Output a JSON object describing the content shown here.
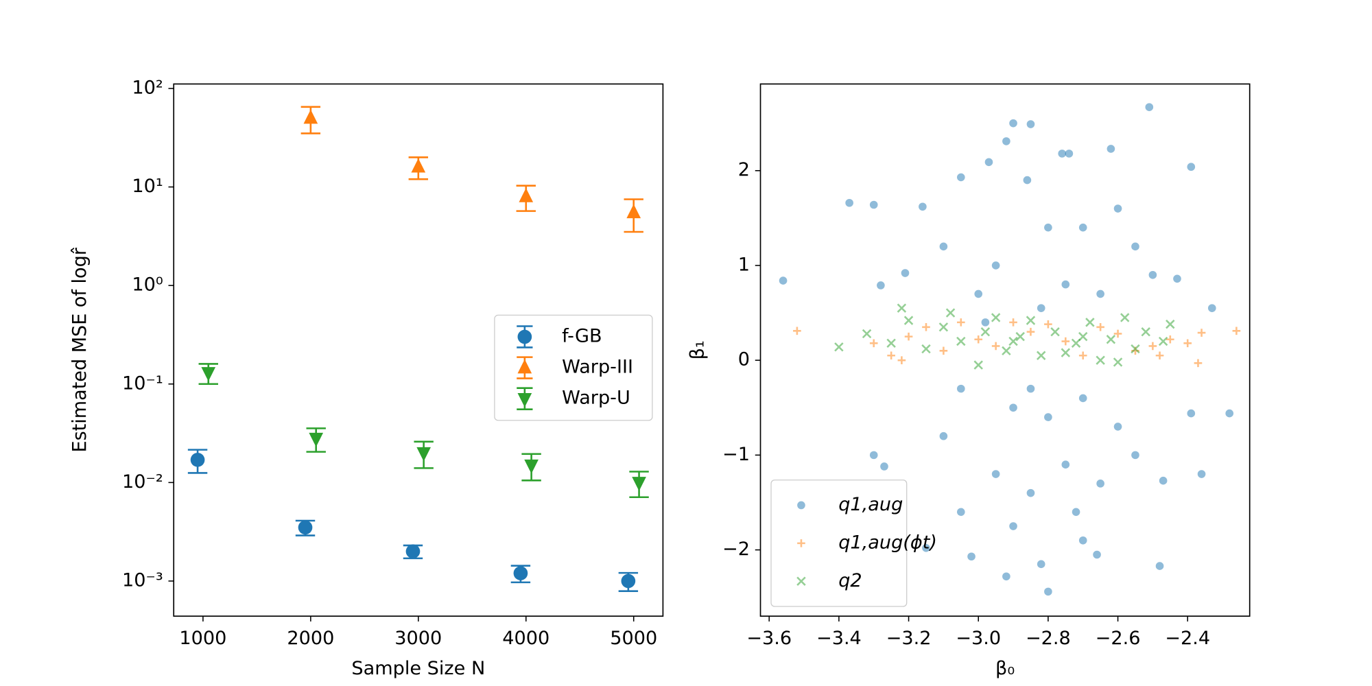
{
  "chart_data": [
    {
      "type": "errorbar",
      "xlabel": "Sample Size N",
      "ylabel": "Estimated MSE of logr̂",
      "yscale": "log",
      "xlim": [
        728,
        5272
      ],
      "xticks": [
        1000,
        2000,
        3000,
        4000,
        5000
      ],
      "ylim": [
        0.00044,
        111
      ],
      "yticks": [
        {
          "value": 0.001,
          "label": "10⁻³"
        },
        {
          "value": 0.01,
          "label": "10⁻²"
        },
        {
          "value": 0.1,
          "label": "10⁻¹"
        },
        {
          "value": 1,
          "label": "10⁰"
        },
        {
          "value": 10,
          "label": "10¹"
        },
        {
          "value": 100,
          "label": "10²"
        }
      ],
      "legend": "center right",
      "series": [
        {
          "name": "f-GB",
          "color": "#1f77b4",
          "marker": "o",
          "x": [
            950,
            1950,
            2950,
            3950,
            4950
          ],
          "values": [
            0.017,
            0.0035,
            0.002,
            0.0012,
            0.001
          ],
          "errors": [
            0.0045,
            0.0006,
            0.0003,
            0.00023,
            0.00021
          ]
        },
        {
          "name": "Warp-III",
          "color": "#ff7f0e",
          "marker": "^",
          "x": [
            2000,
            3000,
            4000,
            5000
          ],
          "values": [
            50,
            16,
            8,
            5.5
          ],
          "errors": [
            15,
            4,
            2.3,
            2
          ]
        },
        {
          "name": "Warp-U",
          "color": "#2ca02c",
          "marker": "v",
          "x": [
            1050,
            2050,
            3050,
            4050,
            5050
          ],
          "values": [
            0.13,
            0.028,
            0.02,
            0.015,
            0.01
          ],
          "errors": [
            0.03,
            0.0075,
            0.006,
            0.0045,
            0.0029
          ]
        }
      ]
    },
    {
      "type": "scatter",
      "xlabel": "β₀",
      "ylabel": "β₁",
      "xlim": [
        -3.625,
        -2.222
      ],
      "xticks": [
        {
          "value": -3.6,
          "label": "−3.6"
        },
        {
          "value": -3.4,
          "label": "−3.4"
        },
        {
          "value": -3.2,
          "label": "−3.2"
        },
        {
          "value": -3.0,
          "label": "−3.0"
        },
        {
          "value": -2.8,
          "label": "−2.8"
        },
        {
          "value": -2.6,
          "label": "−2.6"
        },
        {
          "value": -2.4,
          "label": "−2.4"
        }
      ],
      "ylim": [
        -2.699,
        2.914
      ],
      "yticks": [
        {
          "value": -2,
          "label": "−2"
        },
        {
          "value": -1,
          "label": "−1"
        },
        0,
        1,
        2
      ],
      "legend": "lower left",
      "alpha": 0.5,
      "series": [
        {
          "name": "q1,aug",
          "color": "#1f77b4",
          "marker": "o",
          "x": [
            -3.56,
            -3.37,
            -3.3,
            -2.9,
            -2.85,
            -2.51,
            -2.92,
            -2.62,
            -2.39,
            -2.76,
            -2.74,
            -2.97,
            -3.05,
            -3.16,
            -2.33,
            -2.43,
            -2.39,
            -2.28,
            -2.36,
            -2.47,
            -2.48,
            -2.8,
            -2.92,
            -3.02,
            -3.15,
            -3.3,
            -3.27,
            -2.82,
            -2.7,
            -2.66,
            -3.21,
            -3.28,
            -3.1,
            -2.86,
            -2.8,
            -2.7,
            -2.6,
            -2.55,
            -2.5,
            -2.95,
            -3.0,
            -2.75,
            -2.65,
            -3.05,
            -2.9,
            -2.8,
            -2.7,
            -2.6,
            -3.1,
            -2.95,
            -2.85,
            -2.75,
            -2.65,
            -2.55,
            -3.05,
            -2.9,
            -2.72,
            -2.85,
            -2.98,
            -2.82
          ],
          "values": [
            0.84,
            1.66,
            1.64,
            2.5,
            2.49,
            2.67,
            2.31,
            2.23,
            2.04,
            2.18,
            2.18,
            2.09,
            1.93,
            1.62,
            0.55,
            0.86,
            -0.56,
            -0.56,
            -1.2,
            -1.27,
            -2.17,
            -2.44,
            -2.28,
            -2.07,
            -1.98,
            -1.0,
            -1.12,
            -2.15,
            -1.9,
            -2.05,
            0.92,
            0.79,
            1.2,
            1.9,
            1.4,
            1.4,
            1.6,
            1.2,
            0.9,
            1.0,
            0.7,
            0.8,
            0.7,
            -0.3,
            -0.5,
            -0.6,
            -0.4,
            -0.7,
            -0.8,
            -1.2,
            -1.4,
            -1.1,
            -1.3,
            -1.0,
            -1.6,
            -1.75,
            -1.6,
            -0.3,
            0.4,
            0.55
          ]
        },
        {
          "name": "q1,aug(ϕt)",
          "color": "#ff7f0e",
          "marker": "+",
          "x": [
            -3.52,
            -2.26,
            -2.36,
            -2.37,
            -3.3,
            -3.25,
            -3.15,
            -3.05,
            -2.95,
            -2.85,
            -2.75,
            -2.65,
            -2.55,
            -2.45,
            -2.4,
            -3.2,
            -3.1,
            -2.9,
            -2.7,
            -2.6,
            -2.5,
            -3.0,
            -2.8,
            -3.22,
            -2.48
          ],
          "values": [
            0.31,
            0.31,
            0.29,
            -0.03,
            0.18,
            0.05,
            0.35,
            0.4,
            0.15,
            0.3,
            0.2,
            0.35,
            0.1,
            0.22,
            0.18,
            0.25,
            0.1,
            0.4,
            0.05,
            0.28,
            0.15,
            0.22,
            0.38,
            0.0,
            0.05
          ]
        },
        {
          "name": "q2",
          "color": "#2ca02c",
          "marker": "x",
          "x": [
            -3.4,
            -3.32,
            -3.22,
            -3.2,
            -3.1,
            -3.05,
            -2.98,
            -2.92,
            -2.88,
            -2.82,
            -2.78,
            -2.72,
            -2.68,
            -2.62,
            -2.58,
            -2.52,
            -2.45,
            -2.47,
            -3.15,
            -3.0,
            -2.85,
            -2.75,
            -2.65,
            -2.55,
            -3.08,
            -2.95,
            -2.7,
            -2.6,
            -3.25,
            -2.9
          ],
          "values": [
            0.14,
            0.28,
            0.55,
            0.42,
            0.35,
            0.2,
            0.3,
            0.1,
            0.25,
            0.05,
            0.3,
            0.18,
            0.4,
            0.22,
            0.45,
            0.3,
            0.38,
            0.2,
            0.12,
            -0.05,
            0.42,
            0.08,
            0.0,
            0.12,
            0.5,
            0.45,
            0.25,
            -0.02,
            0.18,
            0.2
          ]
        }
      ]
    }
  ]
}
